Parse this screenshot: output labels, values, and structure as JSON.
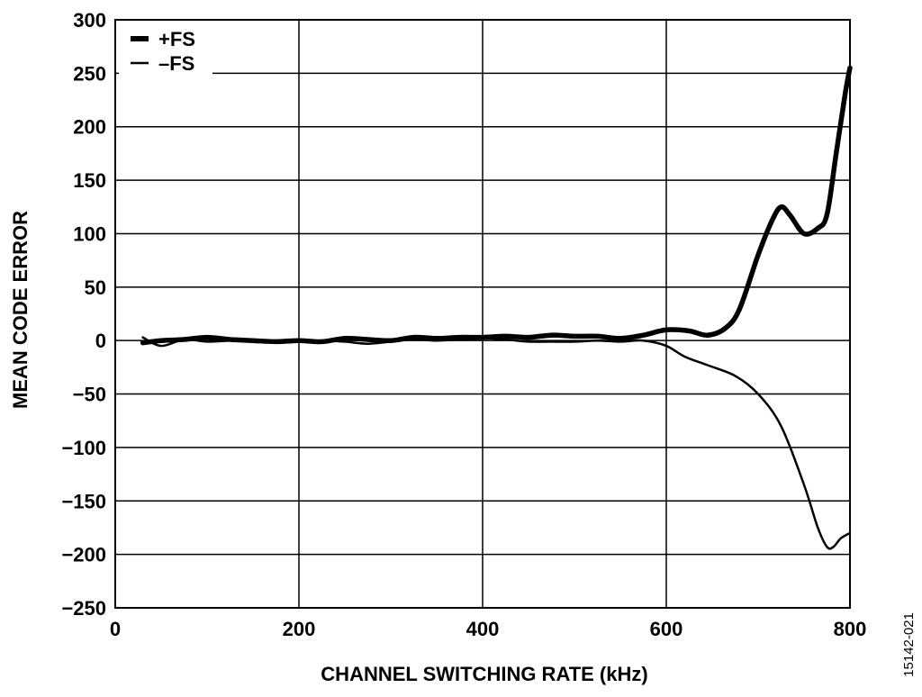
{
  "figure_id": "15142-021",
  "chart_data": {
    "type": "line",
    "title": "",
    "xlabel": "CHANNEL SWITCHING RATE  (kHz)",
    "ylabel": "MEAN CODE ERROR",
    "xlim": [
      0,
      800
    ],
    "ylim": [
      -250,
      300
    ],
    "xticks": [
      0,
      200,
      400,
      600,
      800
    ],
    "xtick_labels": [
      "0",
      "200",
      "400",
      "600",
      "800"
    ],
    "yticks": [
      300,
      250,
      200,
      150,
      100,
      50,
      0,
      -50,
      -100,
      -150,
      -200,
      -250
    ],
    "ytick_labels": [
      "300",
      "250",
      "200",
      "150",
      "100",
      "50",
      "0",
      "−50",
      "−100",
      "−150",
      "−200",
      "−250"
    ],
    "grid": true,
    "legend": {
      "placement": "top-left",
      "entries": [
        {
          "label": "+FS",
          "style": "thick"
        },
        {
          "label": "–FS",
          "style": "thin"
        }
      ]
    },
    "series": [
      {
        "name": "+FS",
        "x": [
          30,
          50,
          75,
          100,
          125,
          150,
          175,
          200,
          225,
          250,
          275,
          300,
          325,
          350,
          375,
          400,
          425,
          450,
          475,
          500,
          525,
          550,
          575,
          600,
          625,
          645,
          665,
          680,
          700,
          715,
          725,
          735,
          750,
          765,
          775,
          785,
          795,
          800
        ],
        "y": [
          -2,
          0,
          1,
          3,
          1,
          0,
          -1,
          0,
          -1,
          2,
          1,
          0,
          3,
          2,
          3,
          3,
          4,
          3,
          5,
          4,
          4,
          2,
          5,
          10,
          9,
          5,
          12,
          30,
          80,
          112,
          125,
          117,
          100,
          105,
          118,
          175,
          232,
          255
        ]
      },
      {
        "name": "–FS",
        "x": [
          30,
          50,
          75,
          100,
          125,
          150,
          175,
          200,
          225,
          250,
          275,
          300,
          325,
          350,
          375,
          400,
          425,
          450,
          475,
          500,
          525,
          550,
          575,
          600,
          620,
          645,
          675,
          700,
          725,
          750,
          765,
          775,
          782,
          790,
          800
        ],
        "y": [
          3,
          -5,
          1,
          -1,
          0,
          1,
          -2,
          -1,
          0,
          -1,
          -3,
          -1,
          1,
          0,
          1,
          2,
          1,
          -1,
          -1,
          -1,
          0,
          -1,
          0,
          -5,
          -15,
          -23,
          -33,
          -50,
          -80,
          -135,
          -175,
          -193,
          -193,
          -185,
          -180
        ]
      }
    ]
  }
}
